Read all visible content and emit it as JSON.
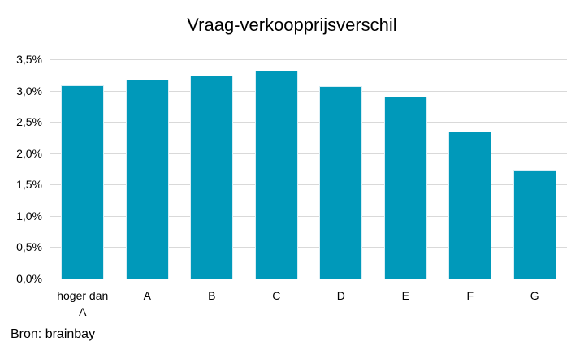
{
  "chart_data": {
    "type": "bar",
    "title": "Vraag-verkoopprijsverschil",
    "categories": [
      "hoger dan A",
      "A",
      "B",
      "C",
      "D",
      "E",
      "F",
      "G"
    ],
    "values": [
      3.09,
      3.17,
      3.24,
      3.32,
      3.07,
      2.91,
      2.35,
      1.74
    ],
    "value_unit": "%",
    "xlabel": "",
    "ylabel": "",
    "ylim": [
      0,
      3.5
    ],
    "ytick_labels": [
      "3,5%",
      "3,0%",
      "2,5%",
      "2,0%",
      "1,5%",
      "1,0%",
      "0,5%",
      "0,0%"
    ],
    "grid": true,
    "legend": false,
    "colors": {
      "bar_fill": "#0099ba",
      "bar_edge": "#d8eef5",
      "gridline": "#d9d9d9",
      "text": "#000000",
      "background": "#ffffff"
    }
  },
  "source_note": "Bron: brainbay"
}
